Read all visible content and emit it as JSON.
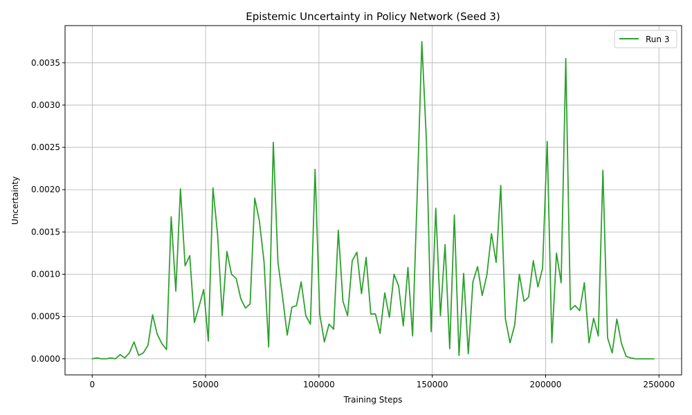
{
  "chart_data": {
    "type": "line",
    "title": "Epistemic Uncertainty in Policy Network (Seed 3)",
    "xlabel": "Training Steps",
    "ylabel": "Uncertainty",
    "xlim": [
      -12000,
      260000
    ],
    "ylim": [
      -0.00019,
      0.00394
    ],
    "xticks": [
      0,
      50000,
      100000,
      150000,
      200000,
      250000
    ],
    "xtick_labels": [
      "0",
      "50000",
      "100000",
      "150000",
      "200000",
      "250000"
    ],
    "yticks": [
      0.0,
      0.0005,
      0.001,
      0.0015,
      0.002,
      0.0025,
      0.003,
      0.0035
    ],
    "ytick_labels": [
      "0.0000",
      "0.0005",
      "0.0010",
      "0.0015",
      "0.0020",
      "0.0025",
      "0.0030",
      "0.0035"
    ],
    "grid": true,
    "legend_position": "top-right",
    "series": [
      {
        "name": "Run 3",
        "color": "#2ca02c",
        "x": [
          0,
          2048,
          4096,
          6144,
          8192,
          10240,
          12288,
          14336,
          16384,
          18432,
          20480,
          22528,
          24576,
          26624,
          28672,
          30720,
          32768,
          34816,
          36864,
          38912,
          40960,
          43008,
          45056,
          47104,
          49152,
          51200,
          53248,
          55296,
          57344,
          59392,
          61440,
          63488,
          65536,
          67584,
          69632,
          71680,
          73728,
          75776,
          77824,
          79872,
          81920,
          83968,
          86016,
          88064,
          90112,
          92160,
          94208,
          96256,
          98304,
          100352,
          102400,
          104448,
          106496,
          108544,
          110592,
          112640,
          114688,
          116736,
          118784,
          120832,
          122880,
          124928,
          126976,
          129024,
          131072,
          133120,
          135168,
          137216,
          139264,
          141312,
          143360,
          145408,
          147456,
          149504,
          151552,
          153600,
          155648,
          157696,
          159744,
          161792,
          163840,
          165888,
          167936,
          169984,
          172032,
          174080,
          176128,
          178176,
          180224,
          182272,
          184320,
          186368,
          188416,
          190464,
          192512,
          194560,
          196608,
          198656,
          200704,
          202752,
          204800,
          206848,
          208896,
          210944,
          212992,
          215040,
          217088,
          219136,
          221184,
          223232,
          225280,
          227328,
          229376,
          231424,
          233472,
          235520,
          237568,
          239616,
          241664,
          243712,
          245760,
          247808
        ],
        "y": [
          0.0,
          1e-05,
          0.0,
          0.0,
          1e-05,
          0.0,
          5e-05,
          1e-05,
          7e-05,
          0.0002,
          4e-05,
          7e-05,
          0.00016,
          0.00052,
          0.00029,
          0.00018,
          0.00011,
          0.00168,
          0.0008,
          0.00201,
          0.0011,
          0.00122,
          0.00043,
          0.00062,
          0.00082,
          0.00021,
          0.00202,
          0.00147,
          0.00051,
          0.00127,
          0.001,
          0.00095,
          0.00071,
          0.0006,
          0.00065,
          0.0019,
          0.00163,
          0.00115,
          0.00014,
          0.00256,
          0.00114,
          0.00073,
          0.00028,
          0.00061,
          0.00063,
          0.00091,
          0.00051,
          0.00041,
          0.00224,
          0.00053,
          0.0002,
          0.00041,
          0.00035,
          0.00152,
          0.00068,
          0.00051,
          0.00116,
          0.00126,
          0.00077,
          0.0012,
          0.00053,
          0.00053,
          0.0003,
          0.00078,
          0.00049,
          0.001,
          0.00086,
          0.00039,
          0.00108,
          0.00027,
          0.00195,
          0.00375,
          0.00255,
          0.00032,
          0.00178,
          0.00051,
          0.00135,
          0.00012,
          0.0017,
          4e-05,
          0.00101,
          6e-05,
          0.00091,
          0.00109,
          0.00075,
          0.00099,
          0.00148,
          0.00114,
          0.00205,
          0.00047,
          0.00019,
          0.0004,
          0.001,
          0.00068,
          0.00073,
          0.00116,
          0.00085,
          0.00107,
          0.00257,
          0.00019,
          0.00125,
          0.0009,
          0.00355,
          0.00058,
          0.00063,
          0.00057,
          0.0009,
          0.00019,
          0.00048,
          0.00027,
          0.00223,
          0.00025,
          7e-05,
          0.00047,
          0.00018,
          3e-05,
          1e-05,
          0.0,
          0.0,
          0.0,
          0.0,
          0.0
        ]
      }
    ]
  }
}
